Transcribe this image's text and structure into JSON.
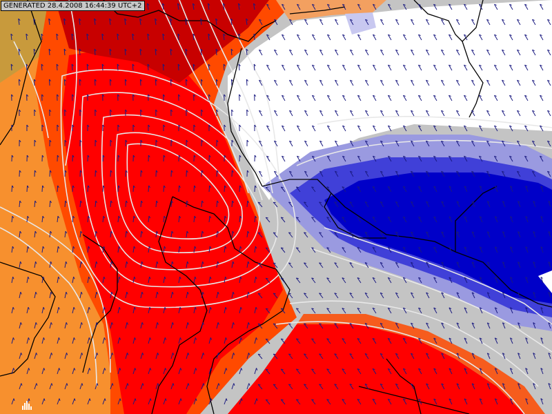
{
  "header": {
    "generated_stamp": "GENERATED 28.4.2008 16:44:39 UTC+2"
  },
  "map": {
    "description_kind": "weather-model field over central Europe with wind vectors",
    "colors": {
      "dark_red": "#c80000",
      "red": "#ff0000",
      "orange_red": "#ff4a00",
      "orange": "#f7902e",
      "olive": "#c89a3c",
      "white": "#ffffff",
      "grey": "#c4c4c4",
      "blue": "#0000c8",
      "light_blue": "#c8c8f0",
      "arrow": "#1a1a80",
      "border": "#000000",
      "contour": "#e8e8e8"
    },
    "icons": {
      "wind_arrow": "wind-arrow-icon",
      "logo": "bar-logo-icon"
    }
  }
}
